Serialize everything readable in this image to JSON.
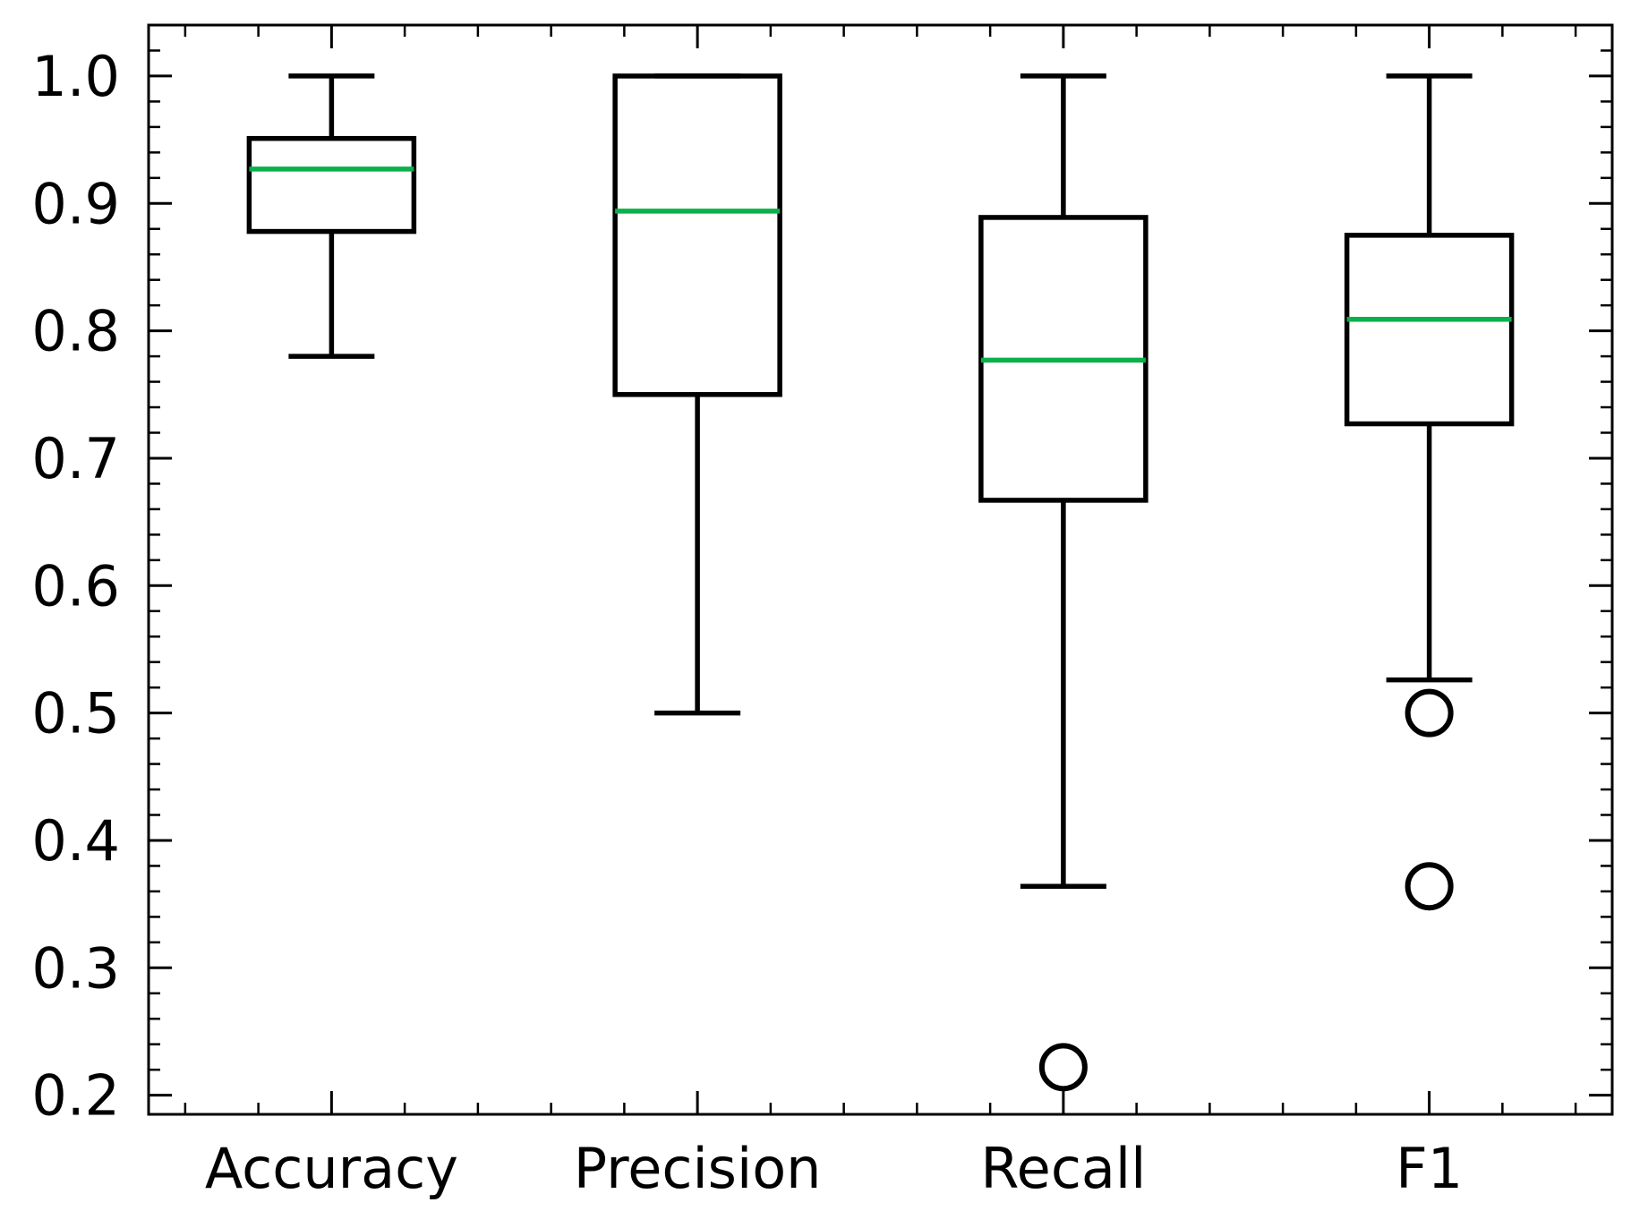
{
  "chart_data": {
    "type": "box",
    "title": "",
    "xlabel": "",
    "ylabel": "",
    "ylim": [
      0.185,
      1.04
    ],
    "grid": false,
    "legend": "none",
    "yticks": [
      0.2,
      0.3,
      0.4,
      0.5,
      0.6,
      0.7,
      0.8,
      0.9,
      1.0
    ],
    "ytick_labels": [
      "0.2",
      "0.3",
      "0.4",
      "0.5",
      "0.6",
      "0.7",
      "0.8",
      "0.9",
      "1.0"
    ],
    "categories": [
      "Accuracy",
      "Precision",
      "Recall",
      "F1"
    ],
    "boxes": [
      {
        "label": "Accuracy",
        "whisker_low": 0.78,
        "q1": 0.878,
        "median": 0.927,
        "q3": 0.951,
        "whisker_high": 1.0,
        "outliers": []
      },
      {
        "label": "Precision",
        "whisker_low": 0.5,
        "q1": 0.75,
        "median": 0.894,
        "q3": 1.0,
        "whisker_high": 1.0,
        "outliers": []
      },
      {
        "label": "Recall",
        "whisker_low": 0.364,
        "q1": 0.667,
        "median": 0.777,
        "q3": 0.889,
        "whisker_high": 1.0,
        "outliers": [
          0.222
        ]
      },
      {
        "label": "F1",
        "whisker_low": 0.526,
        "q1": 0.727,
        "median": 0.809,
        "q3": 0.875,
        "whisker_high": 1.0,
        "outliers": [
          0.5,
          0.364
        ]
      }
    ],
    "colors": {
      "box": "#000000",
      "median": "#0bb04a",
      "outlier": "#000000",
      "frame": "#000000"
    }
  }
}
